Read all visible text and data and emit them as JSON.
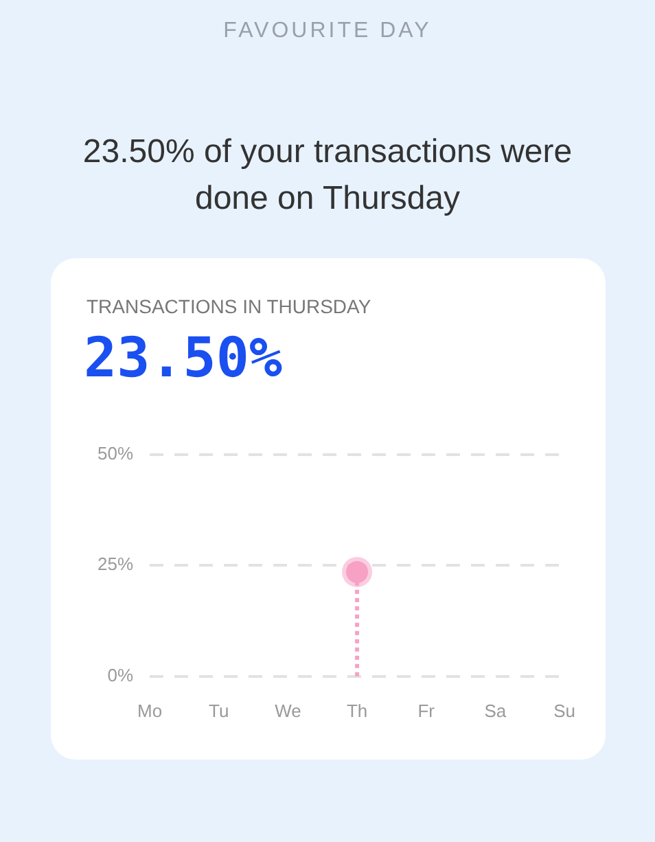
{
  "chart_data": {
    "type": "lollipop",
    "title": "FAVOURITE DAY",
    "subtitle": "23.50% of your transactions were done on Thursday",
    "annotations": [
      "TRANSACTIONS IN THURSDAY",
      "23.50%"
    ],
    "categories": [
      "Mo",
      "Tu",
      "We",
      "Th",
      "Fr",
      "Sa",
      "Su"
    ],
    "values": [
      null,
      null,
      null,
      23.5,
      null,
      null,
      null
    ],
    "color": "#f7a1c4",
    "ylim": [
      0,
      50
    ],
    "yticks": [
      {
        "value": 0,
        "label": "0%"
      },
      {
        "value": 25,
        "label": "25%"
      },
      {
        "value": 50,
        "label": "50%"
      }
    ],
    "grid": "y",
    "marker": "circle",
    "line_style": "dotted",
    "legend": false
  }
}
